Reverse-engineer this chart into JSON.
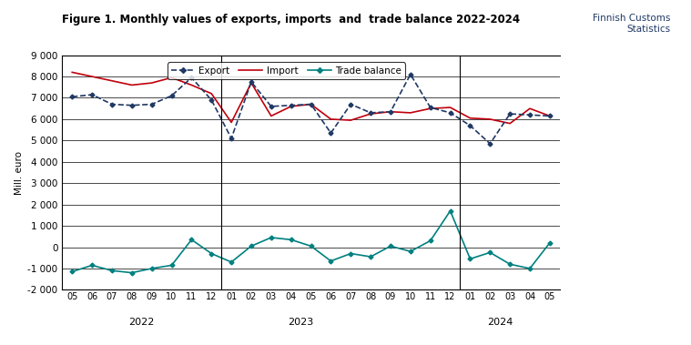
{
  "title": "Figure 1. Monthly values of exports, imports  and  trade balance 2022-2024",
  "watermark": "Finnish Customs\nStatistics",
  "ylabel": "Mill. euro",
  "tick_labels": [
    "05",
    "06",
    "07",
    "08",
    "09",
    "10",
    "11",
    "12",
    "01",
    "02",
    "03",
    "04",
    "05",
    "06",
    "07",
    "08",
    "09",
    "10",
    "11",
    "12",
    "01",
    "02",
    "03",
    "04",
    "05"
  ],
  "year_labels": [
    [
      "2022",
      3.5
    ],
    [
      "2023",
      11.5
    ],
    [
      "2024",
      21.5
    ]
  ],
  "year_dividers": [
    8,
    20
  ],
  "export": [
    7050,
    7150,
    6700,
    6650,
    6700,
    7100,
    7950,
    6900,
    5100,
    7750,
    6600,
    6650,
    6700,
    5350,
    6700,
    6300,
    6350,
    8100,
    6550,
    6300,
    5700,
    4850,
    6250,
    6200,
    6150
  ],
  "import": [
    8200,
    8000,
    7800,
    7600,
    7700,
    7950,
    7600,
    7200,
    5850,
    7700,
    6150,
    6600,
    6700,
    6000,
    5950,
    6250,
    6350,
    6300,
    6500,
    6550,
    6050,
    6000,
    5800,
    6500,
    6150
  ],
  "trade_balance": [
    -1150,
    -850,
    -1100,
    -1200,
    -1000,
    -850,
    350,
    -300,
    -700,
    50,
    450,
    350,
    50,
    -650,
    -300,
    -450,
    50,
    -200,
    300,
    1700,
    -550,
    -250,
    -800,
    -1000,
    200
  ],
  "export_color": "#1f3864",
  "import_color": "#c0000c",
  "balance_color": "#008080",
  "ylim": [
    -2000,
    9000
  ],
  "yticks": [
    -2000,
    -1000,
    0,
    1000,
    2000,
    3000,
    4000,
    5000,
    6000,
    7000,
    8000,
    9000
  ],
  "background_color": "#ffffff",
  "grid_color": "#000000"
}
